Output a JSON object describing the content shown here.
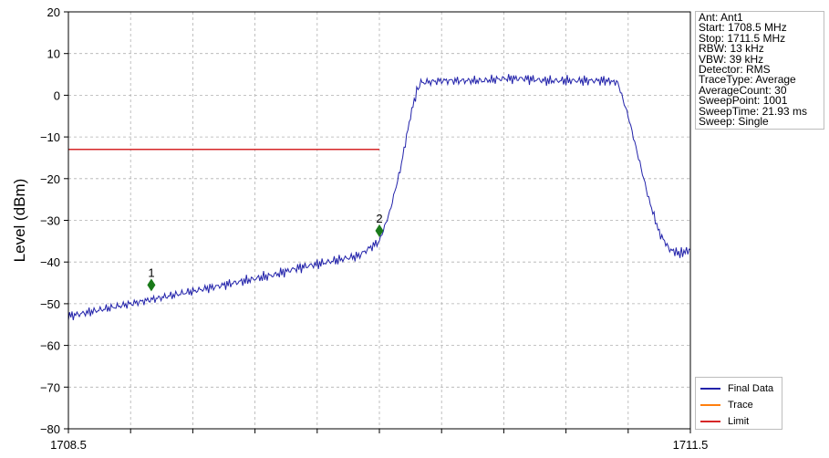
{
  "chart_data": {
    "type": "line",
    "title": "",
    "xlabel": "",
    "ylabel": "Level (dBm)",
    "xlim": [
      1708.5,
      1711.5
    ],
    "ylim": [
      -80,
      20
    ],
    "x_tick_labels": [
      "1708.5",
      "1711.5"
    ],
    "y_ticks": [
      -80,
      -70,
      -60,
      -50,
      -40,
      -30,
      -20,
      -10,
      0,
      10,
      20
    ],
    "y_tick_labels": [
      "−80",
      "−70",
      "−60",
      "−50",
      "−40",
      "−30",
      "−20",
      "−10",
      "0",
      "10",
      "20"
    ],
    "grid": true,
    "legend_position": "bottom-right",
    "series": [
      {
        "name": "Final Data",
        "color": "#2222aa",
        "x": [
          1708.5,
          1708.6,
          1708.7,
          1708.8,
          1708.9,
          1709.0,
          1709.1,
          1709.2,
          1709.3,
          1709.4,
          1709.5,
          1709.6,
          1709.7,
          1709.8,
          1709.9,
          1710.0,
          1710.05,
          1710.1,
          1710.15,
          1710.18,
          1710.2,
          1710.3,
          1710.4,
          1710.5,
          1710.6,
          1710.7,
          1710.8,
          1710.9,
          1711.0,
          1711.1,
          1711.15,
          1711.2,
          1711.25,
          1711.3,
          1711.35,
          1711.4,
          1711.45,
          1711.5
        ],
        "y": [
          -53,
          -52,
          -51,
          -50,
          -49,
          -48,
          -47,
          -46,
          -45,
          -44,
          -43,
          -41.5,
          -40.5,
          -39.5,
          -38.5,
          -35,
          -28,
          -18,
          -5,
          1,
          3,
          3.5,
          3.5,
          3.5,
          4,
          4,
          3.5,
          3.5,
          3.5,
          3.5,
          3,
          -5,
          -15,
          -25,
          -33,
          -37,
          -38,
          -37
        ]
      },
      {
        "name": "Trace",
        "color": "#ff7f0e",
        "x": [],
        "y": []
      },
      {
        "name": "Limit",
        "color": "#d62728",
        "x": [
          1708.5,
          1710.0
        ],
        "y": [
          -13,
          -13
        ]
      }
    ],
    "markers": [
      {
        "label": "1",
        "x": 1708.9,
        "y": -45.5,
        "color": "#1a7a1a"
      },
      {
        "label": "2",
        "x": 1710.0,
        "y": -32.5,
        "color": "#1a7a1a"
      }
    ]
  },
  "info": [
    "Ant: Ant1",
    "Start: 1708.5 MHz",
    "Stop: 1711.5 MHz",
    "RBW: 13 kHz",
    "VBW: 39 kHz",
    "Detector: RMS",
    "TraceType: Average",
    "AverageCount: 30",
    "SweepPoint: 1001",
    "SweepTime: 21.93 ms",
    "Sweep: Single"
  ],
  "legend": [
    {
      "label": "Final Data",
      "color": "#2222aa"
    },
    {
      "label": "Trace",
      "color": "#ff7f0e"
    },
    {
      "label": "Limit",
      "color": "#d62728"
    }
  ]
}
